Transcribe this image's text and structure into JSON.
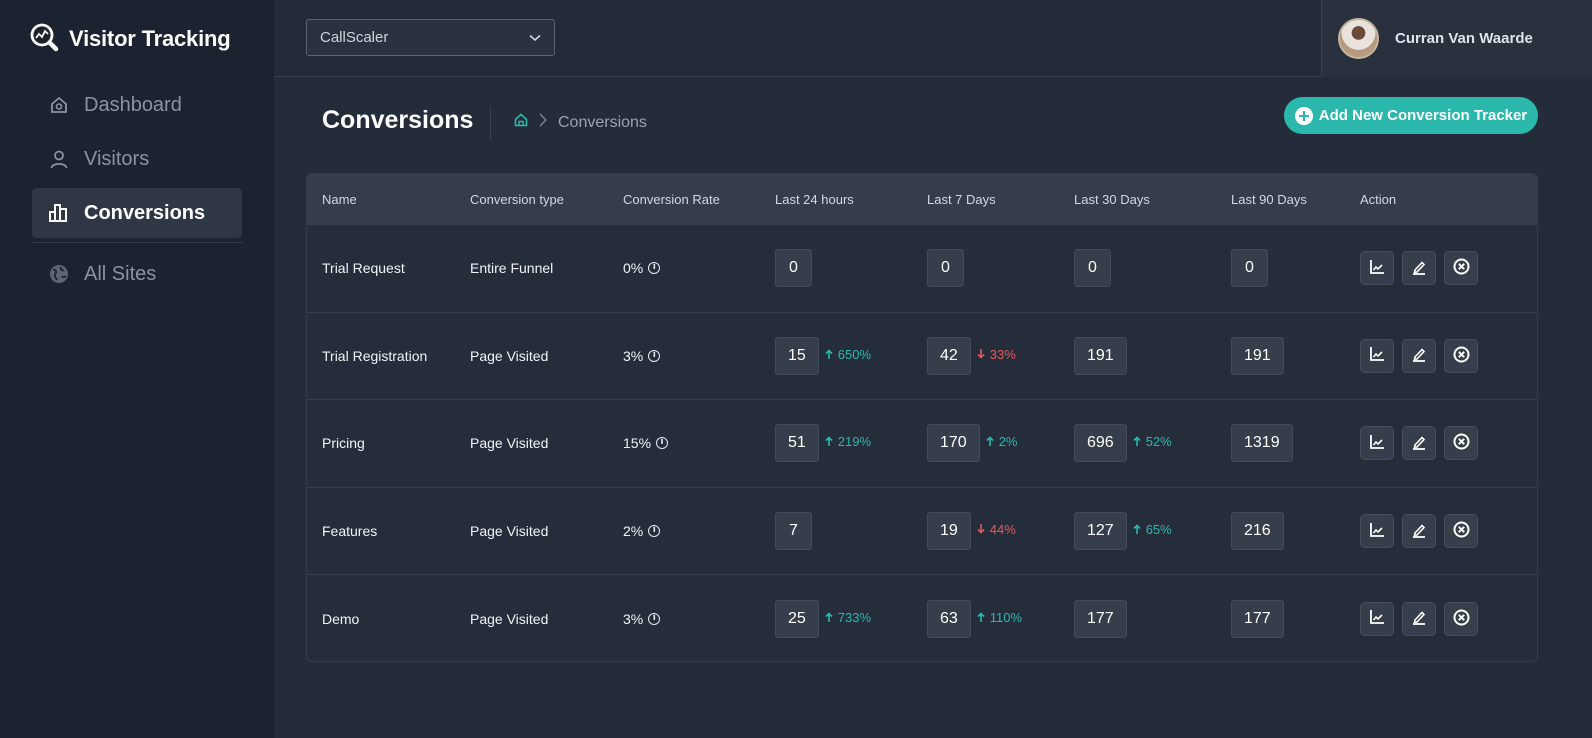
{
  "app": {
    "brand": "Visitor Tracking"
  },
  "sidebar": {
    "items": [
      {
        "label": "Dashboard",
        "icon": "home-icon",
        "active": false
      },
      {
        "label": "Visitors",
        "icon": "user-icon",
        "active": false
      },
      {
        "label": "Conversions",
        "icon": "bar-chart-icon",
        "active": true
      },
      {
        "label": "All Sites",
        "icon": "globe-icon",
        "active": false
      }
    ]
  },
  "topbar": {
    "site_select": {
      "value": "CallScaler"
    },
    "user": {
      "name": "Curran Van Waarde"
    }
  },
  "page": {
    "title": "Conversions",
    "breadcrumb": {
      "current": "Conversions"
    },
    "add_button": "Add New Conversion Tracker"
  },
  "table": {
    "headers": [
      "Name",
      "Conversion type",
      "Conversion Rate",
      "Last 24 hours",
      "Last 7 Days",
      "Last 30 Days",
      "Last 90 Days",
      "Action"
    ],
    "rows": [
      {
        "name": "Trial Request",
        "type": "Entire Funnel",
        "rate": "0%",
        "d24": {
          "value": "0",
          "delta": "",
          "dir": ""
        },
        "d7": {
          "value": "0",
          "delta": "",
          "dir": ""
        },
        "d30": {
          "value": "0",
          "delta": "",
          "dir": ""
        },
        "d90": {
          "value": "0"
        }
      },
      {
        "name": "Trial Registration",
        "type": "Page Visited",
        "rate": "3%",
        "d24": {
          "value": "15",
          "delta": "650%",
          "dir": "up"
        },
        "d7": {
          "value": "42",
          "delta": "33%",
          "dir": "down"
        },
        "d30": {
          "value": "191",
          "delta": "",
          "dir": ""
        },
        "d90": {
          "value": "191"
        }
      },
      {
        "name": "Pricing",
        "type": "Page Visited",
        "rate": "15%",
        "d24": {
          "value": "51",
          "delta": "219%",
          "dir": "up"
        },
        "d7": {
          "value": "170",
          "delta": "2%",
          "dir": "up"
        },
        "d30": {
          "value": "696",
          "delta": "52%",
          "dir": "up"
        },
        "d90": {
          "value": "1319"
        }
      },
      {
        "name": "Features",
        "type": "Page Visited",
        "rate": "2%",
        "d24": {
          "value": "7",
          "delta": "",
          "dir": ""
        },
        "d7": {
          "value": "19",
          "delta": "44%",
          "dir": "down"
        },
        "d30": {
          "value": "127",
          "delta": "65%",
          "dir": "up"
        },
        "d90": {
          "value": "216"
        }
      },
      {
        "name": "Demo",
        "type": "Page Visited",
        "rate": "3%",
        "d24": {
          "value": "25",
          "delta": "733%",
          "dir": "up"
        },
        "d7": {
          "value": "63",
          "delta": "110%",
          "dir": "up"
        },
        "d30": {
          "value": "177",
          "delta": "",
          "dir": ""
        },
        "d90": {
          "value": "177"
        }
      }
    ],
    "actions": [
      "chart-icon",
      "edit-icon",
      "delete-icon"
    ]
  },
  "colors": {
    "accent": "#2bb8ac",
    "negative": "#e05c5c",
    "sidebar_bg": "#1b2230",
    "main_bg": "#242c3a"
  }
}
